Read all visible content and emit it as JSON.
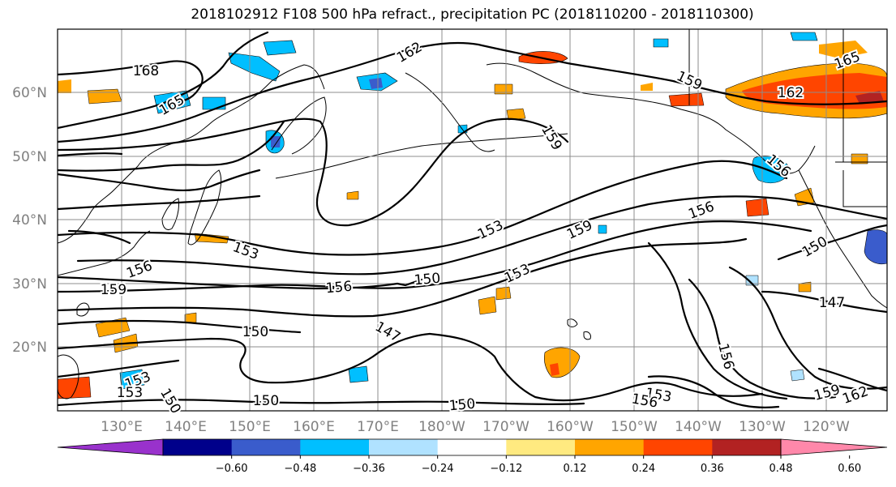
{
  "title": "2018102912 F108 500 hPa refract., precipitation PC (2018110200 - 2018110300)",
  "lat_labels": [
    "60°N",
    "50°N",
    "40°N",
    "30°N",
    "20°N"
  ],
  "lon_labels": [
    "130°E",
    "140°E",
    "150°E",
    "160°E",
    "170°E",
    "180°W",
    "170°W",
    "160°W",
    "150°W",
    "140°W",
    "130°W",
    "120°W"
  ],
  "colorbar": {
    "ticks": [
      "−0.60",
      "−0.48",
      "−0.36",
      "−0.24",
      "−0.12",
      "0.12",
      "0.24",
      "0.36",
      "0.48",
      "0.60"
    ],
    "colors": [
      "#9932cc",
      "#00008b",
      "#3a5ccc",
      "#00bfff",
      "#b0e2ff",
      "#ffffff",
      "#ffea80",
      "#ffa500",
      "#ff4500",
      "#b22222",
      "#ff88aa"
    ]
  },
  "contour_labels": [
    "168",
    "165",
    "162",
    "159",
    "165",
    "162",
    "159",
    "156",
    "156",
    "153",
    "159",
    "156",
    "153",
    "150",
    "159",
    "153",
    "156",
    "150",
    "147",
    "150",
    "153",
    "150",
    "150",
    "156",
    "153",
    "147",
    "156",
    "159",
    "162",
    "150",
    "153"
  ]
}
